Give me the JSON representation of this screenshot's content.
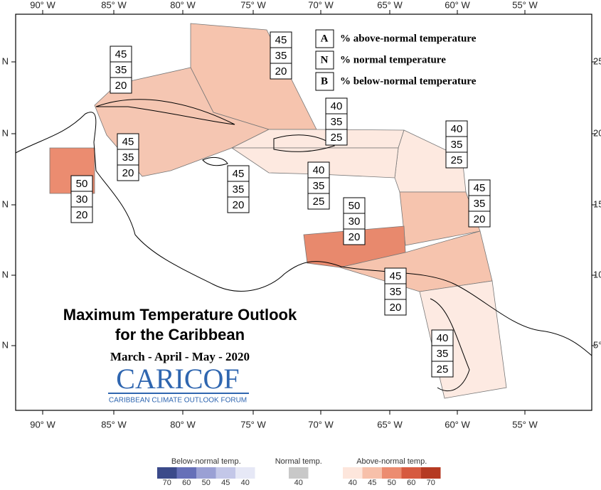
{
  "axes": {
    "top": [
      "90° W",
      "85° W",
      "80° W",
      "75° W",
      "70° W",
      "65° W",
      "60° W",
      "55° W"
    ],
    "bottom": [
      "90° W",
      "85° W",
      "80° W",
      "75° W",
      "70° W",
      "65° W",
      "60° W",
      "55° W"
    ],
    "left": [
      "N",
      "N",
      "N",
      "N",
      "N"
    ],
    "right": [
      "25",
      "20°",
      "15°",
      "10°",
      "5°"
    ]
  },
  "key": [
    {
      "letter": "A",
      "text": "% above-normal temperature"
    },
    {
      "letter": "N",
      "text": "% normal temperature"
    },
    {
      "letter": "B",
      "text": "% below-normal temperature"
    }
  ],
  "title": {
    "line1": "Maximum Temperature Outlook",
    "line2": "for the Caribbean",
    "season": "March - April - May - 2020",
    "logo": "CARICOF",
    "logo_subtitle": "CARIBBEAN CLIMATE OUTLOOK FORUM"
  },
  "regions": [
    {
      "above": "45",
      "normal": "35",
      "below": "20"
    },
    {
      "above": "45",
      "normal": "35",
      "below": "20"
    },
    {
      "above": "40",
      "normal": "35",
      "below": "25"
    },
    {
      "above": "40",
      "normal": "35",
      "below": "25"
    },
    {
      "above": "45",
      "normal": "35",
      "below": "20"
    },
    {
      "above": "45",
      "normal": "35",
      "below": "20"
    },
    {
      "above": "40",
      "normal": "35",
      "below": "25"
    },
    {
      "above": "50",
      "normal": "30",
      "below": "20"
    },
    {
      "above": "45",
      "normal": "35",
      "below": "20"
    },
    {
      "above": "50",
      "normal": "30",
      "below": "20"
    },
    {
      "above": "45",
      "normal": "35",
      "below": "20"
    },
    {
      "above": "40",
      "normal": "35",
      "below": "25"
    }
  ],
  "color_scale": {
    "below_label": "Below-normal temp.",
    "below_ticks": [
      "70",
      "60",
      "50",
      "45",
      "40"
    ],
    "normal_label": "Normal temp.",
    "normal_ticks": [
      "40"
    ],
    "above_label": "Above-normal temp.",
    "above_ticks": [
      "40",
      "45",
      "50",
      "60",
      "70"
    ]
  }
}
